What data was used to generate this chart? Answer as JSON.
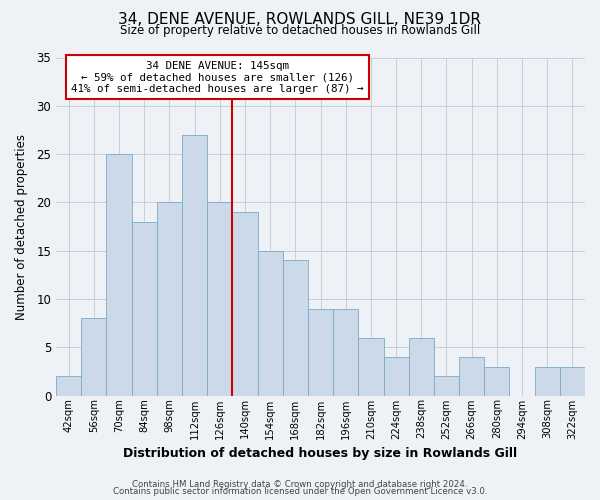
{
  "title": "34, DENE AVENUE, ROWLANDS GILL, NE39 1DR",
  "subtitle": "Size of property relative to detached houses in Rowlands Gill",
  "xlabel": "Distribution of detached houses by size in Rowlands Gill",
  "ylabel": "Number of detached properties",
  "bin_labels": [
    "42sqm",
    "56sqm",
    "70sqm",
    "84sqm",
    "98sqm",
    "112sqm",
    "126sqm",
    "140sqm",
    "154sqm",
    "168sqm",
    "182sqm",
    "196sqm",
    "210sqm",
    "224sqm",
    "238sqm",
    "252sqm",
    "266sqm",
    "280sqm",
    "294sqm",
    "308sqm",
    "322sqm"
  ],
  "bar_values": [
    2,
    8,
    25,
    18,
    20,
    27,
    20,
    19,
    15,
    14,
    9,
    9,
    6,
    4,
    6,
    2,
    4,
    3,
    0,
    3,
    3
  ],
  "bar_color": "#ccd9e8",
  "bar_edgecolor": "#7aaac8",
  "vline_color": "#cc0000",
  "annotation_text": "34 DENE AVENUE: 145sqm\n← 59% of detached houses are smaller (126)\n41% of semi-detached houses are larger (87) →",
  "annotation_box_facecolor": "#ffffff",
  "annotation_box_edgecolor": "#cc0000",
  "ylim": [
    0,
    35
  ],
  "yticks": [
    0,
    5,
    10,
    15,
    20,
    25,
    30,
    35
  ],
  "footer_line1": "Contains HM Land Registry data © Crown copyright and database right 2024.",
  "footer_line2": "Contains public sector information licensed under the Open Government Licence v3.0.",
  "bg_color": "#eef2f7",
  "grid_color": "#c8cdd8"
}
